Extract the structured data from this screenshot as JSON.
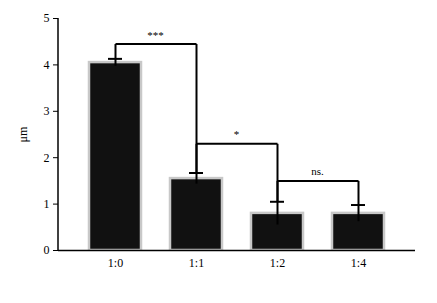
{
  "chart_data": {
    "type": "bar",
    "categories": [
      "1:0",
      "1:1",
      "1:2",
      "1:4"
    ],
    "values": [
      4.05,
      1.55,
      0.8,
      0.8
    ],
    "errors": [
      0.08,
      0.12,
      0.25,
      0.18
    ],
    "color": "#111111",
    "ylabel": "μm",
    "ylim": [
      0,
      5
    ],
    "yticks": [
      0,
      1,
      2,
      3,
      4,
      5
    ],
    "annotations": [
      {
        "text": "***",
        "from": "1:0",
        "to": "1:1",
        "y": 4.45
      },
      {
        "text": "*",
        "from": "1:1",
        "to": "1:2",
        "y": 2.3
      },
      {
        "text": "ns.",
        "from": "1:2",
        "to": "1:4",
        "y": 1.5
      }
    ]
  }
}
